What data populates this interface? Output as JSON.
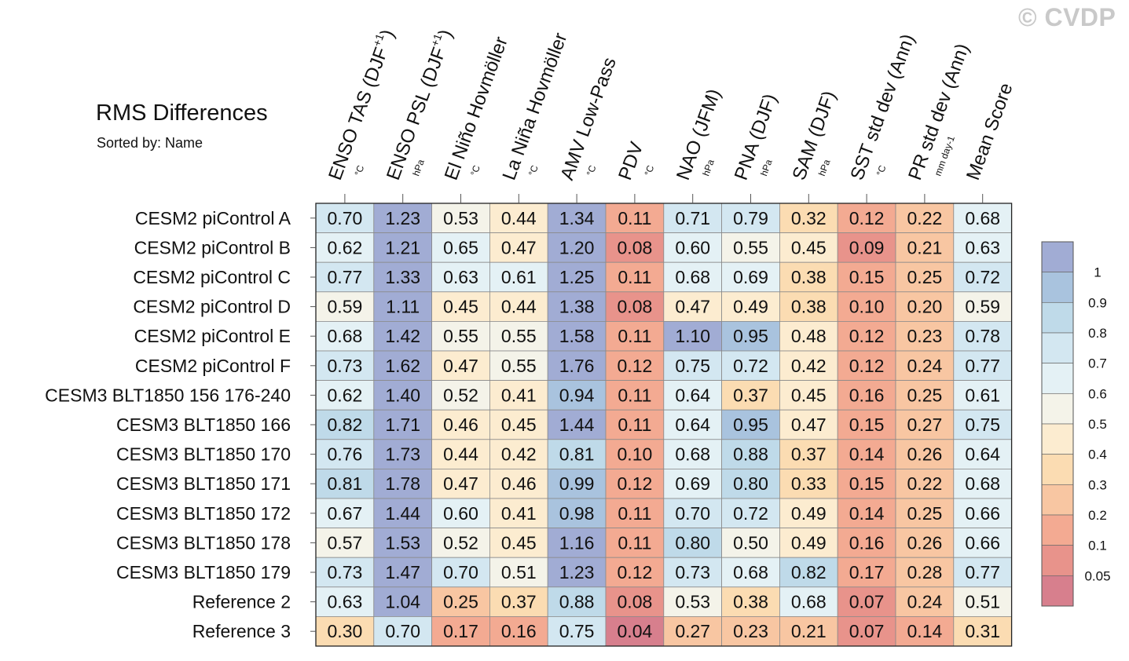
{
  "watermark": "© CVDP",
  "chart_data": {
    "type": "heatmap",
    "title": "RMS Differences",
    "subtitle": "Sorted by: Name",
    "columns": [
      {
        "label": "ENSO TAS (DJF",
        "sup": "+1",
        "close": ")",
        "unit": "°C"
      },
      {
        "label": "ENSO PSL (DJF",
        "sup": "+1",
        "close": ")",
        "unit": "hPa"
      },
      {
        "label": "El Niño Hovmöller",
        "sup": "",
        "close": "",
        "unit": "°C"
      },
      {
        "label": "La Niña Hovmöller",
        "sup": "",
        "close": "",
        "unit": "°C"
      },
      {
        "label": "AMV Low-Pass",
        "sup": "",
        "close": "",
        "unit": "°C"
      },
      {
        "label": "PDV",
        "sup": "",
        "close": "",
        "unit": "°C"
      },
      {
        "label": "NAO (JFM)",
        "sup": "",
        "close": "",
        "unit": "hPa"
      },
      {
        "label": "PNA (DJF)",
        "sup": "",
        "close": "",
        "unit": "hPa"
      },
      {
        "label": "SAM (DJF)",
        "sup": "",
        "close": "",
        "unit": "hPa"
      },
      {
        "label": "SST std dev (Ann)",
        "sup": "",
        "close": "",
        "unit": "°C"
      },
      {
        "label": "PR std dev (Ann)",
        "sup": "",
        "close": "",
        "unit": "mm day-1"
      },
      {
        "label": "Mean Score",
        "sup": "",
        "close": "",
        "unit": ""
      }
    ],
    "rows": [
      "CESM2 piControl A",
      "CESM2 piControl B",
      "CESM2 piControl C",
      "CESM2 piControl D",
      "CESM2 piControl E",
      "CESM2 piControl F",
      "CESM3 BLT1850 156 176-240",
      "CESM3 BLT1850 166",
      "CESM3 BLT1850 170",
      "CESM3 BLT1850 171",
      "CESM3 BLT1850 172",
      "CESM3 BLT1850 178",
      "CESM3 BLT1850 179",
      "Reference 2",
      "Reference 3"
    ],
    "values": [
      [
        "0.70",
        "1.23",
        "0.53",
        "0.44",
        "1.34",
        "0.11",
        "0.71",
        "0.79",
        "0.32",
        "0.12",
        "0.22",
        "0.68"
      ],
      [
        "0.62",
        "1.21",
        "0.65",
        "0.47",
        "1.20",
        "0.08",
        "0.60",
        "0.55",
        "0.45",
        "0.09",
        "0.21",
        "0.63"
      ],
      [
        "0.77",
        "1.33",
        "0.63",
        "0.61",
        "1.25",
        "0.11",
        "0.68",
        "0.69",
        "0.38",
        "0.15",
        "0.25",
        "0.72"
      ],
      [
        "0.59",
        "1.11",
        "0.45",
        "0.44",
        "1.38",
        "0.08",
        "0.47",
        "0.49",
        "0.38",
        "0.10",
        "0.20",
        "0.59"
      ],
      [
        "0.68",
        "1.42",
        "0.55",
        "0.55",
        "1.58",
        "0.11",
        "1.10",
        "0.95",
        "0.48",
        "0.12",
        "0.23",
        "0.78"
      ],
      [
        "0.73",
        "1.62",
        "0.47",
        "0.55",
        "1.76",
        "0.12",
        "0.75",
        "0.72",
        "0.42",
        "0.12",
        "0.24",
        "0.77"
      ],
      [
        "0.62",
        "1.40",
        "0.52",
        "0.41",
        "0.94",
        "0.11",
        "0.64",
        "0.37",
        "0.45",
        "0.16",
        "0.25",
        "0.61"
      ],
      [
        "0.82",
        "1.71",
        "0.46",
        "0.45",
        "1.44",
        "0.11",
        "0.64",
        "0.95",
        "0.47",
        "0.15",
        "0.27",
        "0.75"
      ],
      [
        "0.76",
        "1.73",
        "0.44",
        "0.42",
        "0.81",
        "0.10",
        "0.68",
        "0.88",
        "0.37",
        "0.14",
        "0.26",
        "0.64"
      ],
      [
        "0.81",
        "1.78",
        "0.47",
        "0.46",
        "0.99",
        "0.12",
        "0.69",
        "0.80",
        "0.33",
        "0.15",
        "0.22",
        "0.68"
      ],
      [
        "0.67",
        "1.44",
        "0.60",
        "0.41",
        "0.98",
        "0.11",
        "0.70",
        "0.72",
        "0.49",
        "0.14",
        "0.25",
        "0.66"
      ],
      [
        "0.57",
        "1.53",
        "0.52",
        "0.45",
        "1.16",
        "0.11",
        "0.80",
        "0.50",
        "0.49",
        "0.16",
        "0.26",
        "0.66"
      ],
      [
        "0.73",
        "1.47",
        "0.70",
        "0.51",
        "1.23",
        "0.12",
        "0.73",
        "0.68",
        "0.82",
        "0.17",
        "0.28",
        "0.77"
      ],
      [
        "0.63",
        "1.04",
        "0.25",
        "0.37",
        "0.88",
        "0.08",
        "0.53",
        "0.38",
        "0.68",
        "0.07",
        "0.24",
        "0.51"
      ],
      [
        "0.30",
        "0.70",
        "0.17",
        "0.16",
        "0.75",
        "0.04",
        "0.27",
        "0.23",
        "0.21",
        "0.07",
        "0.14",
        "0.31"
      ]
    ],
    "colorbar": {
      "labels": [
        "1",
        "0.9",
        "0.8",
        "0.7",
        "0.6",
        "0.5",
        "0.4",
        "0.3",
        "0.2",
        "0.1",
        "0.05"
      ],
      "thresholds": [
        1,
        0.9,
        0.8,
        0.7,
        0.6,
        0.5,
        0.4,
        0.3,
        0.2,
        0.1,
        0.05
      ],
      "colors": [
        "#a1acd4",
        "#a9c3de",
        "#bfdae9",
        "#d3e7f1",
        "#e4f1f5",
        "#f4f3e9",
        "#fcecd0",
        "#fbdcb2",
        "#f8c6a2",
        "#f3aa92",
        "#e8938b",
        "#d77f8d"
      ]
    }
  }
}
